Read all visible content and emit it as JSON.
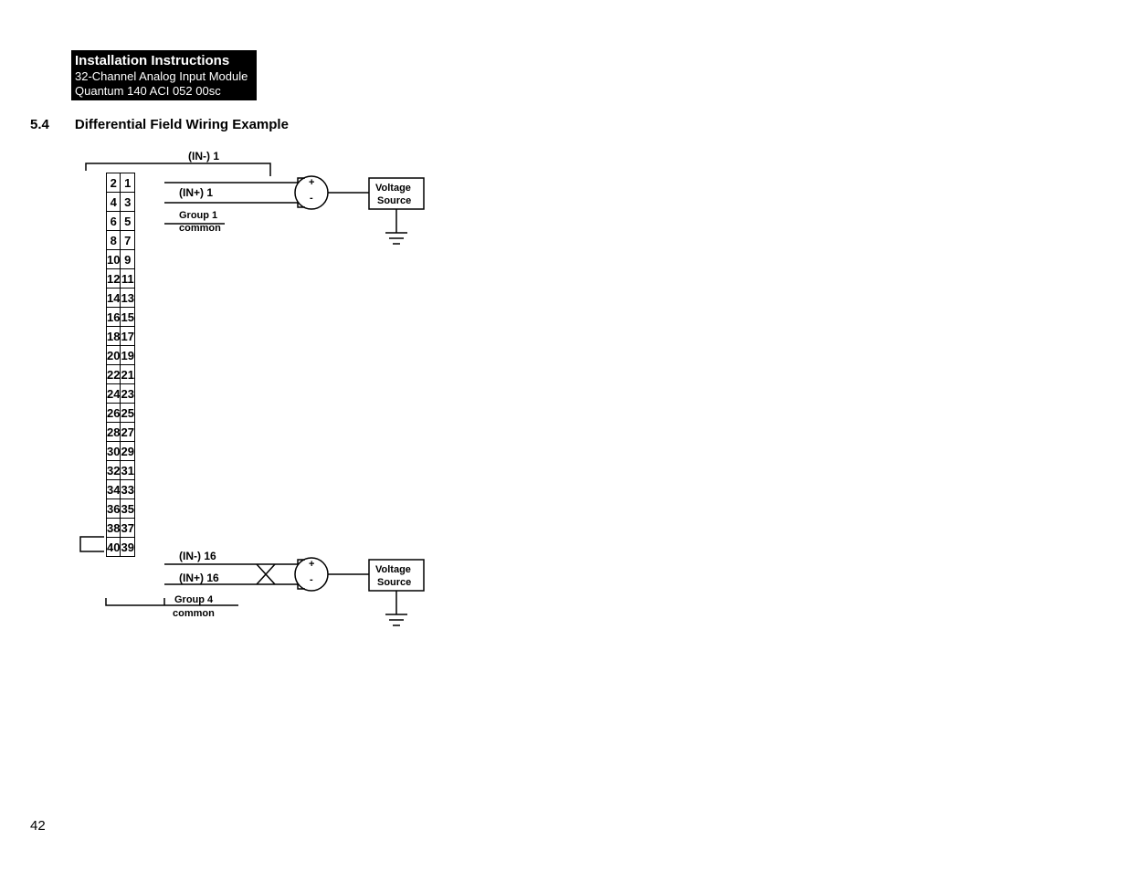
{
  "header": {
    "title": "Installation Instructions",
    "sub1": "32-Channel Analog Input Module",
    "sub2": "Quantum 140 ACI 052 00sc"
  },
  "section": {
    "num": "5.4",
    "title": "Differential Field Wiring Example"
  },
  "page_number": "42",
  "diagram": {
    "terminals_left": [
      "2",
      "4",
      "6",
      "8",
      "10",
      "12",
      "14",
      "16",
      "18",
      "20",
      "22",
      "24",
      "26",
      "28",
      "30",
      "32",
      "34",
      "36",
      "38",
      "40"
    ],
    "terminals_right": [
      "1",
      "3",
      "5",
      "7",
      "9",
      "11",
      "13",
      "15",
      "17",
      "19",
      "21",
      "23",
      "25",
      "27",
      "29",
      "31",
      "33",
      "35",
      "37",
      "39"
    ],
    "top_bus_label": "(IN-) 1",
    "top_in_plus": "(IN+) 1",
    "top_group": "Group 1",
    "top_common": "common",
    "bottom_in_minus": "(IN-) 16",
    "bottom_in_plus": "(IN+) 16",
    "bottom_group": "Group 4",
    "bottom_common": "common",
    "voltage_source": "Voltage\nSource",
    "colors": {
      "line": "#000000",
      "bg": "#ffffff"
    },
    "line_width": 1.5
  }
}
